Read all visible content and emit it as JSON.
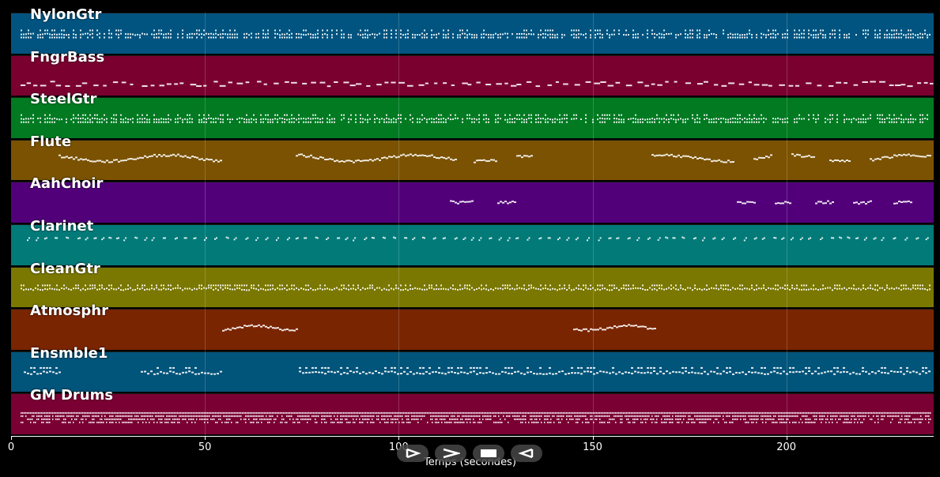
{
  "tracks": [
    {
      "name": "NylonGtr",
      "color": "#015480",
      "pattern": "dense-chords",
      "row": 0.55
    },
    {
      "name": "FngrBass",
      "color": "#7a0030",
      "pattern": "sparse-low",
      "row": 0.72
    },
    {
      "name": "SteelGtr",
      "color": "#017a22",
      "pattern": "dense-chords",
      "row": 0.55
    },
    {
      "name": "Flute",
      "color": "#7a5201",
      "pattern": "melody-phrases",
      "row": 0.45
    },
    {
      "name": "AahChoir",
      "color": "#52007a",
      "pattern": "late-blips",
      "row": 0.5
    },
    {
      "name": "Clarinet",
      "color": "#017a78",
      "pattern": "scattered-motifs",
      "row": 0.4
    },
    {
      "name": "CleanGtr",
      "color": "#7a7801",
      "pattern": "dense-line",
      "row": 0.5
    },
    {
      "name": "Atmosphr",
      "color": "#7a2501",
      "pattern": "two-phrases",
      "row": 0.4
    },
    {
      "name": "Ensmble1",
      "color": "#01547a",
      "pattern": "mixed-clusters",
      "row": 0.45
    },
    {
      "name": "GM Drums",
      "color": "#7a0033",
      "pattern": "drum-grid",
      "row": 0.55
    }
  ],
  "axis": {
    "xlabel": "Temps (secondes)",
    "xmin": 0,
    "xmax": 238,
    "ticks": [
      0,
      50,
      100,
      150,
      200
    ]
  },
  "controls": [
    {
      "name": "step-forward-button",
      "icon": "step-forward-icon"
    },
    {
      "name": "play-button",
      "icon": "play-icon"
    },
    {
      "name": "stop-button",
      "icon": "stop-icon"
    },
    {
      "name": "rewind-button",
      "icon": "rewind-icon"
    }
  ]
}
